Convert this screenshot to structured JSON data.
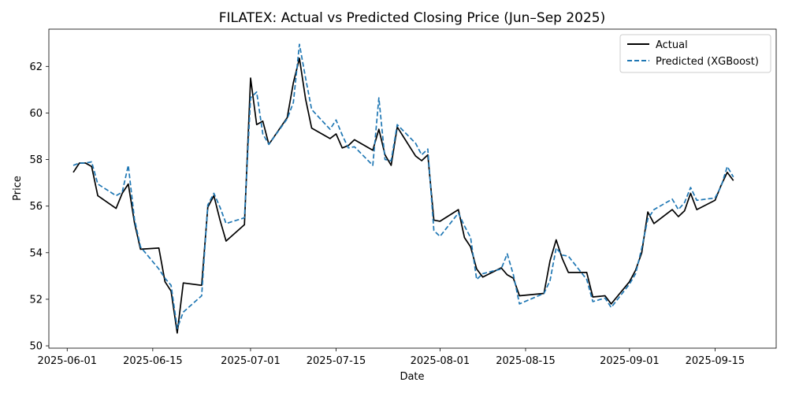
{
  "chart_data": {
    "type": "line",
    "title": "FILATEX: Actual vs Predicted Closing Price (Jun–Sep 2025)",
    "xlabel": "Date",
    "ylabel": "Price",
    "x_ticks": [
      "2025-06-01",
      "2025-06-15",
      "2025-07-01",
      "2025-07-15",
      "2025-08-01",
      "2025-08-15",
      "2025-09-01",
      "2025-09-15"
    ],
    "y_ticks": [
      "50",
      "52",
      "54",
      "56",
      "58",
      "60",
      "62"
    ],
    "xlim": [
      "2025-05-29",
      "2025-09-25"
    ],
    "ylim": [
      49.9,
      63.6
    ],
    "legend_position": "top-right",
    "grid": false,
    "colors": {
      "Actual": "#000000",
      "Predicted (XGBoost)": "#1f77b4"
    },
    "x": [
      "2025-06-02",
      "2025-06-03",
      "2025-06-04",
      "2025-06-05",
      "2025-06-06",
      "2025-06-09",
      "2025-06-10",
      "2025-06-11",
      "2025-06-12",
      "2025-06-13",
      "2025-06-16",
      "2025-06-17",
      "2025-06-18",
      "2025-06-19",
      "2025-06-20",
      "2025-06-23",
      "2025-06-24",
      "2025-06-25",
      "2025-06-26",
      "2025-06-27",
      "2025-06-30",
      "2025-07-01",
      "2025-07-02",
      "2025-07-03",
      "2025-07-04",
      "2025-07-07",
      "2025-07-08",
      "2025-07-09",
      "2025-07-10",
      "2025-07-11",
      "2025-07-14",
      "2025-07-15",
      "2025-07-16",
      "2025-07-17",
      "2025-07-18",
      "2025-07-21",
      "2025-07-22",
      "2025-07-23",
      "2025-07-24",
      "2025-07-25",
      "2025-07-28",
      "2025-07-29",
      "2025-07-30",
      "2025-07-31",
      "2025-08-01",
      "2025-08-04",
      "2025-08-05",
      "2025-08-06",
      "2025-08-07",
      "2025-08-08",
      "2025-08-11",
      "2025-08-12",
      "2025-08-13",
      "2025-08-14",
      "2025-08-18",
      "2025-08-19",
      "2025-08-20",
      "2025-08-21",
      "2025-08-22",
      "2025-08-25",
      "2025-08-26",
      "2025-08-28",
      "2025-08-29",
      "2025-09-01",
      "2025-09-02",
      "2025-09-03",
      "2025-09-04",
      "2025-09-05",
      "2025-09-08",
      "2025-09-09",
      "2025-09-10",
      "2025-09-11",
      "2025-09-12",
      "2025-09-15",
      "2025-09-16",
      "2025-09-17",
      "2025-09-18"
    ],
    "series": [
      {
        "name": "Actual",
        "values": [
          57.45,
          57.85,
          57.85,
          57.7,
          56.45,
          55.9,
          56.55,
          56.95,
          55.3,
          54.15,
          54.2,
          52.75,
          52.35,
          50.55,
          52.7,
          52.6,
          55.95,
          56.45,
          55.4,
          54.5,
          55.2,
          61.5,
          59.5,
          59.65,
          58.65,
          59.8,
          61.3,
          62.35,
          60.6,
          59.35,
          58.9,
          59.1,
          58.5,
          58.6,
          58.85,
          58.4,
          59.3,
          58.2,
          57.75,
          59.4,
          58.15,
          57.95,
          58.2,
          55.4,
          55.35,
          55.85,
          54.65,
          54.25,
          53.3,
          52.95,
          53.35,
          53.05,
          52.9,
          52.15,
          52.25,
          53.65,
          54.55,
          53.75,
          53.15,
          53.15,
          52.1,
          52.15,
          51.8,
          52.75,
          53.25,
          54.0,
          55.75,
          55.25,
          55.85,
          55.55,
          55.8,
          56.55,
          55.85,
          56.25,
          56.9,
          57.45,
          57.1
        ]
      },
      {
        "name": "Predicted (XGBoost)",
        "values": [
          57.75,
          57.85,
          57.85,
          57.9,
          56.95,
          56.45,
          56.6,
          57.75,
          55.45,
          54.25,
          53.3,
          52.9,
          52.6,
          50.75,
          51.45,
          52.15,
          56.05,
          56.55,
          55.95,
          55.25,
          55.5,
          60.65,
          60.9,
          59.1,
          58.65,
          59.75,
          60.45,
          62.95,
          61.5,
          60.15,
          59.3,
          59.7,
          59.05,
          58.5,
          58.55,
          57.75,
          60.65,
          58.0,
          57.95,
          59.5,
          58.7,
          58.2,
          58.45,
          54.95,
          54.7,
          55.7,
          55.15,
          54.65,
          52.85,
          53.1,
          53.3,
          53.95,
          53.05,
          51.8,
          52.25,
          52.8,
          54.2,
          53.9,
          53.85,
          52.85,
          51.9,
          52.05,
          51.65,
          52.65,
          53.1,
          54.2,
          55.45,
          55.85,
          56.3,
          55.85,
          56.15,
          56.8,
          56.25,
          56.35,
          56.85,
          57.7,
          57.25
        ]
      }
    ]
  }
}
